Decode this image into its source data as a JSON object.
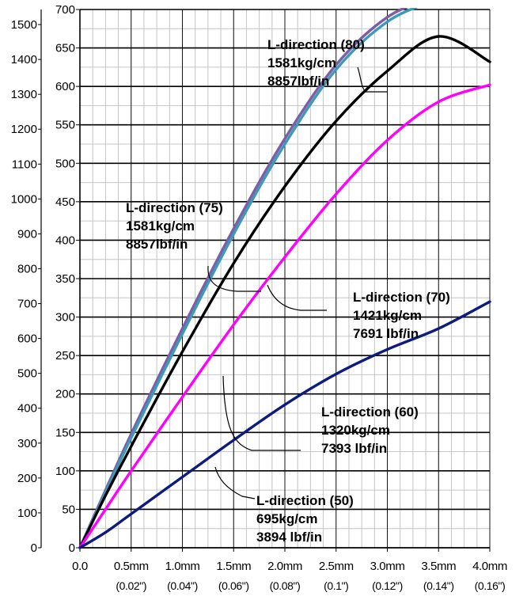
{
  "chart_data": {
    "type": "line",
    "x_unit": "mm",
    "x_range": [
      0,
      4.0
    ],
    "x_ticks": [
      {
        "value": 0.0,
        "label": "0.0",
        "sub": ""
      },
      {
        "value": 0.5,
        "label": "0.5mm",
        "sub": "(0.02\")"
      },
      {
        "value": 1.0,
        "label": "1.0mm",
        "sub": "(0.04\")"
      },
      {
        "value": 1.5,
        "label": "1.5mm",
        "sub": "(0.06\")"
      },
      {
        "value": 2.0,
        "label": "2.0mm",
        "sub": "(0.08\")"
      },
      {
        "value": 2.5,
        "label": "2.5mm",
        "sub": "(0.1\")"
      },
      {
        "value": 3.0,
        "label": "3.0mm",
        "sub": "(0.12\")"
      },
      {
        "value": 3.5,
        "label": "3.5mm",
        "sub": "(0.14\")"
      },
      {
        "value": 4.0,
        "label": "4.0mm",
        "sub": "(0.16\")"
      }
    ],
    "y_inner_range": [
      0,
      700
    ],
    "y_inner_ticks": [
      0,
      50,
      100,
      150,
      200,
      250,
      300,
      350,
      400,
      450,
      500,
      550,
      600,
      650,
      700
    ],
    "y_outer_ticks": [
      0,
      100,
      200,
      300,
      400,
      500,
      600,
      700,
      800,
      900,
      1000,
      1100,
      1200,
      1300,
      1400,
      1500
    ],
    "y_outer_per_inner": 2.2046,
    "grid": true,
    "series": [
      {
        "name": "L-direction (80)",
        "color": "#7b5ea7",
        "points": [
          [
            0,
            0
          ],
          [
            0.25,
            75
          ],
          [
            0.5,
            148
          ],
          [
            1.0,
            285
          ],
          [
            1.5,
            415
          ],
          [
            2.0,
            532
          ],
          [
            2.5,
            628
          ],
          [
            3.0,
            690
          ],
          [
            3.5,
            720
          ],
          [
            4.0,
            760
          ]
        ]
      },
      {
        "name": "L-direction (75)",
        "color": "#3a9ab8",
        "points": [
          [
            0,
            0
          ],
          [
            0.25,
            72
          ],
          [
            0.5,
            143
          ],
          [
            1.0,
            278
          ],
          [
            1.5,
            408
          ],
          [
            2.0,
            525
          ],
          [
            2.5,
            622
          ],
          [
            3.0,
            684
          ],
          [
            3.5,
            716
          ],
          [
            4.0,
            758
          ]
        ]
      },
      {
        "name": "L-direction (70)",
        "color": "#000000",
        "points": [
          [
            0,
            0
          ],
          [
            0.25,
            68
          ],
          [
            0.5,
            132
          ],
          [
            1.0,
            255
          ],
          [
            1.5,
            370
          ],
          [
            2.0,
            470
          ],
          [
            2.5,
            555
          ],
          [
            3.0,
            620
          ],
          [
            3.5,
            665
          ],
          [
            4.0,
            632
          ]
        ]
      },
      {
        "name": "L-direction (60)",
        "color": "#ff00ff",
        "points": [
          [
            0,
            0
          ],
          [
            0.25,
            50
          ],
          [
            0.5,
            100
          ],
          [
            1.0,
            196
          ],
          [
            1.5,
            290
          ],
          [
            2.0,
            378
          ],
          [
            2.5,
            460
          ],
          [
            3.0,
            530
          ],
          [
            3.5,
            580
          ],
          [
            4.0,
            602
          ]
        ]
      },
      {
        "name": "L-direction (50)",
        "color": "#0d1a80",
        "points": [
          [
            0,
            0
          ],
          [
            0.25,
            20
          ],
          [
            0.5,
            44
          ],
          [
            1.0,
            92
          ],
          [
            1.5,
            140
          ],
          [
            2.0,
            186
          ],
          [
            2.5,
            226
          ],
          [
            3.0,
            258
          ],
          [
            3.5,
            285
          ],
          [
            4.0,
            320
          ]
        ]
      }
    ],
    "annotations": [
      {
        "id": "anno-80",
        "lines": [
          "L-direction (80)",
          "1581kg/cm",
          "8857lbf/in"
        ]
      },
      {
        "id": "anno-75",
        "lines": [
          "L-direction (75)",
          "1581kg/cm",
          "8857lbf/in"
        ]
      },
      {
        "id": "anno-70",
        "lines": [
          "L-direction (70)",
          "1421kg/cm",
          "7691 lbf/in"
        ]
      },
      {
        "id": "anno-60",
        "lines": [
          "L-direction (60)",
          "1320kg/cm",
          "7393 lbf/in"
        ]
      },
      {
        "id": "anno-50",
        "lines": [
          "L-direction (50)",
          "695kg/cm",
          "3894 lbf/in"
        ]
      }
    ]
  }
}
